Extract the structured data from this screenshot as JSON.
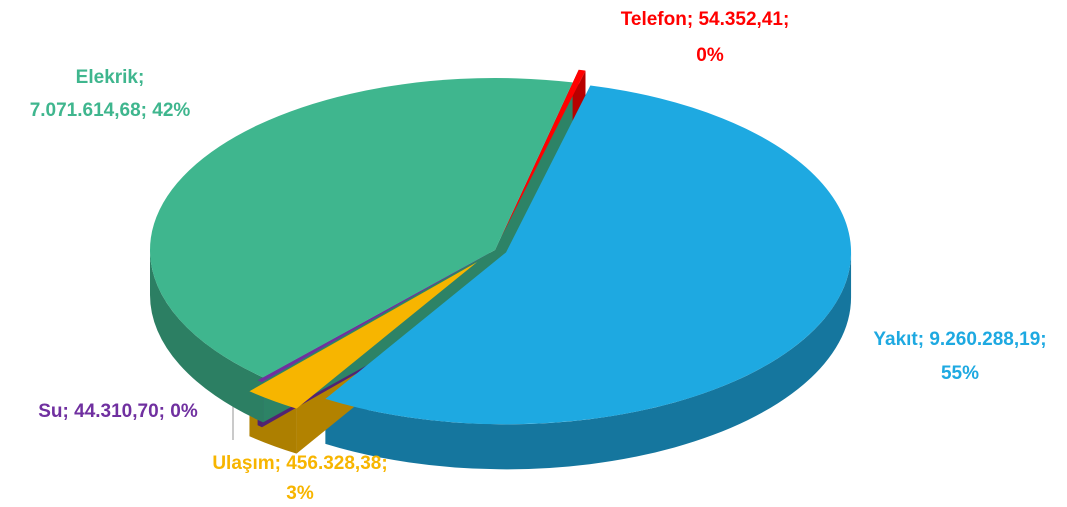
{
  "chart_data": {
    "type": "pie3d",
    "values": [
      54352.41,
      9260288.19,
      456328.38,
      44310.7,
      7071614.68
    ],
    "value_labels": [
      [
        "Telefon; 54.352,41;",
        "0%"
      ],
      [
        "Yakıt; 9.260.288,19;",
        "55%"
      ],
      [
        "Ulaşım;  456.328,38;",
        "3%"
      ],
      [
        "Su; 44.310,70; 0%"
      ],
      [
        "Elekrik;",
        "7.071.614,68; 42%"
      ]
    ],
    "colors": [
      "#ff0000",
      "#1ea9e1",
      "#f7b500",
      "#7030a0",
      "#3fb68e"
    ]
  }
}
